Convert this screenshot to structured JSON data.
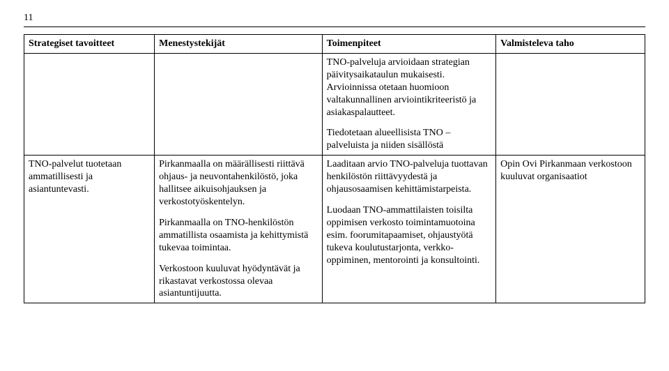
{
  "page_number": "11",
  "table": {
    "headers": [
      "Strategiset tavoitteet",
      "Menestystekijät",
      "Toimenpiteet",
      "Valmisteleva taho"
    ],
    "rows": [
      {
        "c1": "",
        "c2": "",
        "c3p1": "TNO-palveluja arvioidaan strategian päivitysaikataulun mukaisesti. Arvioinnissa otetaan huomioon valtakunnallinen arviointikriteeristö ja asiakaspalautteet.",
        "c3p2": "Tiedotetaan alueellisista TNO – palveluista ja niiden sisällöstä",
        "c4": ""
      },
      {
        "c1": "TNO-palvelut tuotetaan ammatillisesti ja asiantuntevasti.",
        "c2p1": "Pirkanmaalla on määrällisesti riittävä ohjaus- ja neuvontahenkilöstö, joka hallitsee aikuisohjauksen ja verkostotyöskentelyn.",
        "c2p2": "Pirkanmaalla on TNO-henkilöstön ammatillista osaamista ja kehittymistä tukevaa toimintaa.",
        "c2p3": "Verkostoon kuuluvat hyödyntävät ja rikastavat verkostossa olevaa asiantuntijuutta.",
        "c3p1": "Laaditaan arvio TNO-palveluja tuottavan henkilöstön riittävyydestä ja ohjausosaamisen kehittämistarpeista.",
        "c3p2": "Luodaan TNO-ammattilaisten toisilta oppimisen verkosto toimintamuotoina esim. foorumitapaamiset, ohjaustyötä tukeva koulutustarjonta, verkko-oppiminen, mentorointi ja konsultointi.",
        "c4": "Opin Ovi Pirkanmaan verkostoon kuuluvat organisaatiot"
      }
    ]
  }
}
